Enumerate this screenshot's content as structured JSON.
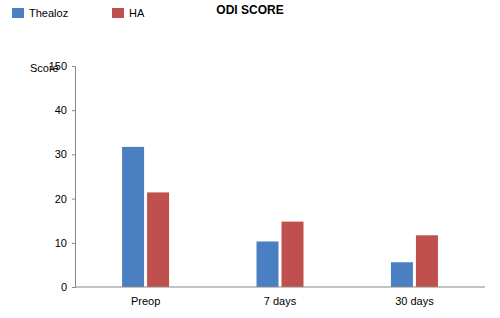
{
  "chart_data": {
    "type": "bar",
    "title": "ODI SCORE",
    "ylabel": "Score",
    "categories": [
      "Preop",
      "7 days",
      "30 days"
    ],
    "series": [
      {
        "name": "Thealoz",
        "color": "#4a7fc1",
        "values": [
          31.7,
          10.3,
          5.6
        ]
      },
      {
        "name": "HA",
        "color": "#c0504d",
        "values": [
          21.4,
          14.8,
          11.7
        ]
      }
    ],
    "ylim": [
      0,
      150
    ],
    "yticks": [
      0,
      10,
      20,
      30,
      40,
      150
    ],
    "legend": "top-left",
    "grid": false
  }
}
